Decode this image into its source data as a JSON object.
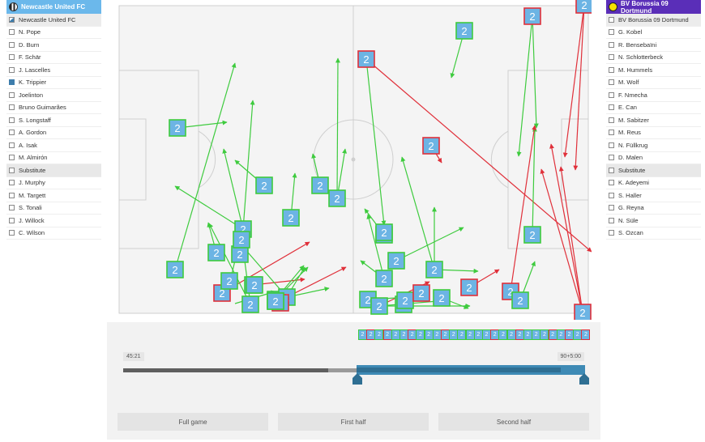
{
  "home_team": {
    "name": "Newcastle United FC",
    "header_color": "#6bb8eb",
    "players": [
      {
        "label": "Newcastle United FC",
        "state": "partial",
        "kind": "team"
      },
      {
        "label": "N. Pope",
        "state": "unchecked",
        "kind": "player"
      },
      {
        "label": "D. Burn",
        "state": "unchecked",
        "kind": "player"
      },
      {
        "label": "F. Schär",
        "state": "unchecked",
        "kind": "player"
      },
      {
        "label": "J. Lascelles",
        "state": "unchecked",
        "kind": "player"
      },
      {
        "label": "K. Trippier",
        "state": "checked",
        "kind": "player"
      },
      {
        "label": "Joelinton",
        "state": "unchecked",
        "kind": "player"
      },
      {
        "label": "Bruno Guimarães",
        "state": "unchecked",
        "kind": "player"
      },
      {
        "label": "S. Longstaff",
        "state": "unchecked",
        "kind": "player"
      },
      {
        "label": "A. Gordon",
        "state": "unchecked",
        "kind": "player"
      },
      {
        "label": "A. Isak",
        "state": "unchecked",
        "kind": "player"
      },
      {
        "label": "M. Almirón",
        "state": "unchecked",
        "kind": "player"
      },
      {
        "label": "Substitute",
        "state": "unchecked",
        "kind": "sub"
      },
      {
        "label": "J. Murphy",
        "state": "unchecked",
        "kind": "player"
      },
      {
        "label": "M. Targett",
        "state": "unchecked",
        "kind": "player"
      },
      {
        "label": "S. Tonali",
        "state": "unchecked",
        "kind": "player"
      },
      {
        "label": "J. Willock",
        "state": "unchecked",
        "kind": "player"
      },
      {
        "label": "C. Wilson",
        "state": "unchecked",
        "kind": "player"
      }
    ]
  },
  "away_team": {
    "name": "BV Borussia 09 Dortmund",
    "header_color": "#5a2eb8",
    "players": [
      {
        "label": "BV Borussia 09 Dortmund",
        "state": "unchecked",
        "kind": "team"
      },
      {
        "label": "G. Kobel",
        "state": "unchecked",
        "kind": "player"
      },
      {
        "label": "R. Bensebaïni",
        "state": "unchecked",
        "kind": "player"
      },
      {
        "label": "N. Schlotterbeck",
        "state": "unchecked",
        "kind": "player"
      },
      {
        "label": "M. Hummels",
        "state": "unchecked",
        "kind": "player"
      },
      {
        "label": "M. Wolf",
        "state": "unchecked",
        "kind": "player"
      },
      {
        "label": "F. Nmecha",
        "state": "unchecked",
        "kind": "player"
      },
      {
        "label": "E. Can",
        "state": "unchecked",
        "kind": "player"
      },
      {
        "label": "M. Sabitzer",
        "state": "unchecked",
        "kind": "player"
      },
      {
        "label": "M. Reus",
        "state": "unchecked",
        "kind": "player"
      },
      {
        "label": "N. Füllkrug",
        "state": "unchecked",
        "kind": "player"
      },
      {
        "label": "D. Malen",
        "state": "unchecked",
        "kind": "player"
      },
      {
        "label": "Substitute",
        "state": "unchecked",
        "kind": "sub"
      },
      {
        "label": "K. Adeyemi",
        "state": "unchecked",
        "kind": "player"
      },
      {
        "label": "S. Haller",
        "state": "unchecked",
        "kind": "player"
      },
      {
        "label": "G. Reyna",
        "state": "unchecked",
        "kind": "player"
      },
      {
        "label": "N. Süle",
        "state": "unchecked",
        "kind": "player"
      },
      {
        "label": "S. Ozcan",
        "state": "unchecked",
        "kind": "player"
      }
    ]
  },
  "marker": {
    "number": "2",
    "fill": "#6cb4e4",
    "success_color": "#3ecb3e",
    "fail_color": "#e0303a"
  },
  "timeline": {
    "start_label": "45:21",
    "end_label": "90+5:00",
    "buttons": {
      "full": "Full game",
      "first": "First half",
      "second": "Second half"
    }
  },
  "event_strip": [
    "g",
    "r",
    "g",
    "r",
    "g",
    "g",
    "r",
    "g",
    "g",
    "g",
    "r",
    "g",
    "g",
    "g",
    "g",
    "g",
    "r",
    "g",
    "g",
    "r",
    "g",
    "g",
    "g",
    "r",
    "g",
    "r",
    "g",
    "r"
  ]
}
